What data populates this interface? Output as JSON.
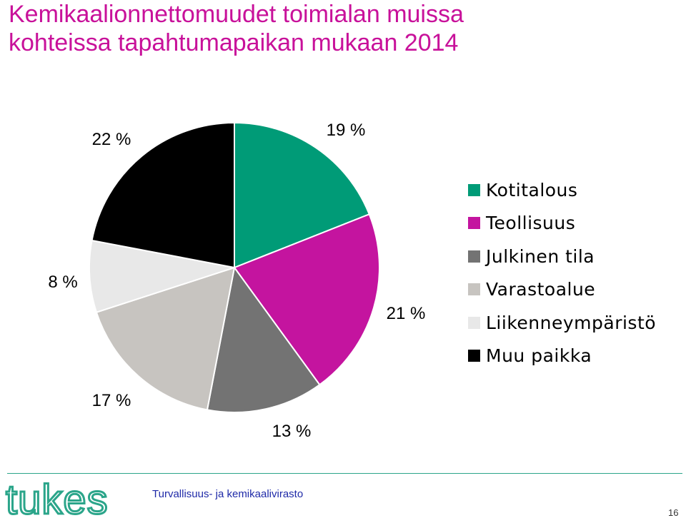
{
  "title": {
    "line1": "Kemikaalionnettomuudet toimialan muissa",
    "line2": "kohteissa tapahtumapaikan mukaan 2014"
  },
  "chart_data": {
    "type": "pie",
    "title": "Kemikaalionnettomuudet toimialan muissa kohteissa tapahtumapaikan mukaan 2014",
    "start_angle_deg": 0,
    "direction": "clockwise",
    "legend_position": "right",
    "slices": [
      {
        "name": "Kotitalous",
        "value": 19,
        "label": "19 %",
        "color": "#009b77"
      },
      {
        "name": "Teollisuus",
        "value": 21,
        "label": "21 %",
        "color": "#c4149f"
      },
      {
        "name": "Julkinen tila",
        "value": 13,
        "label": "13 %",
        "color": "#737373"
      },
      {
        "name": "Varastoalue",
        "value": 17,
        "label": "17 %",
        "color": "#c7c4c0"
      },
      {
        "name": "Liikenneympäristö",
        "value": 8,
        "label": "8 %",
        "color": "#e8e8e8"
      },
      {
        "name": "Muu paikka",
        "value": 22,
        "label": "22 %",
        "color": "#000000"
      }
    ]
  },
  "footer": {
    "logo_text": "tukes",
    "organization": "Turvallisuus- ja kemikaalivirasto",
    "page_number": "16"
  },
  "colors": {
    "title": "#c8119a",
    "footer_line": "#2ba58a",
    "organization": "#1f2aa8"
  }
}
